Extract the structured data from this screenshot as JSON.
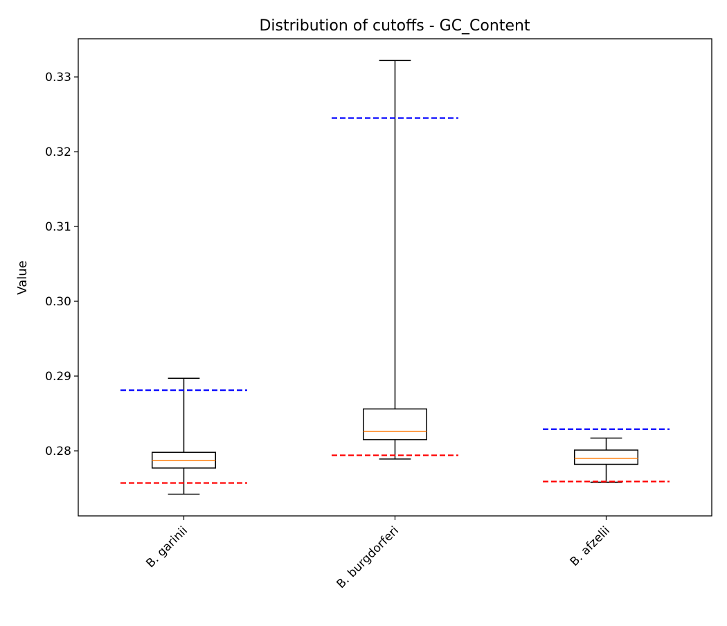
{
  "chart_data": {
    "type": "box",
    "title": "Distribution of cutoffs - GC_Content",
    "xlabel": "",
    "ylabel": "Value",
    "ylim": [
      0.2713,
      0.3351
    ],
    "yticks": [
      "0.28",
      "0.29",
      "0.30",
      "0.31",
      "0.32",
      "0.33"
    ],
    "ytick_values": [
      0.28,
      0.29,
      0.3,
      0.31,
      0.32,
      0.33
    ],
    "categories": [
      "B. garinii",
      "B. burgdorferi",
      "B. afzelii"
    ],
    "boxes": [
      {
        "whisker_low": 0.2742,
        "q1": 0.2777,
        "median": 0.2787,
        "q3": 0.2798,
        "whisker_high": 0.2897
      },
      {
        "whisker_low": 0.2789,
        "q1": 0.2815,
        "median": 0.2826,
        "q3": 0.2856,
        "whisker_high": 0.3322
      },
      {
        "whisker_low": 0.2758,
        "q1": 0.2782,
        "median": 0.279,
        "q3": 0.2801,
        "whisker_high": 0.2817
      }
    ],
    "upper_cutoffs": [
      0.2881,
      0.3245,
      0.2829
    ],
    "lower_cutoffs": [
      0.2757,
      0.2794,
      0.2759
    ],
    "colors": {
      "box": "#000000",
      "median": "#ff7f0e",
      "upper_cutoff": "#0000ff",
      "lower_cutoff": "#ff0000"
    },
    "grid": false
  }
}
